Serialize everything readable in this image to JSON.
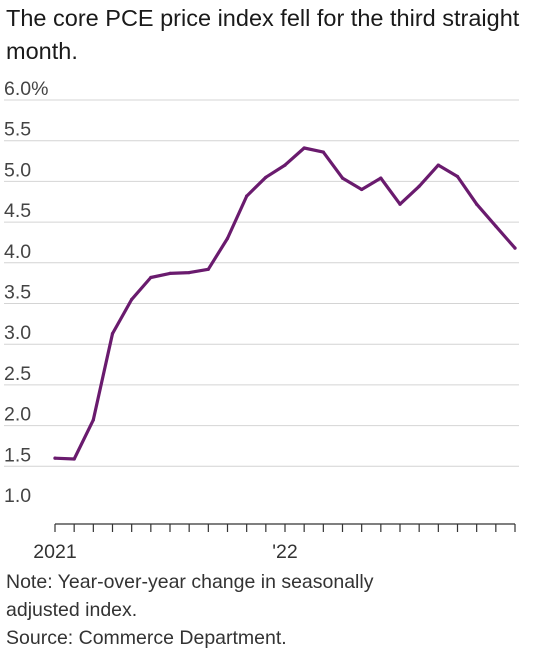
{
  "title": "The core PCE price index fell for the third straight month.",
  "notes": {
    "note": "Note: Year-over-year change in seasonally adjusted index.",
    "note_line1": "Note: Year-over-year change in seasonally",
    "note_line2": "adjusted index.",
    "source": "Source: Commerce Department."
  },
  "colors": {
    "line": "#6a1b6e",
    "grid": "#d4d4d4",
    "axis": "#333333"
  },
  "chart_data": {
    "type": "line",
    "title": "The core PCE price index fell for the third straight month.",
    "xlabel": "",
    "ylabel": "",
    "ylim": [
      1.0,
      6.0
    ],
    "y_ticks": [
      1.0,
      1.5,
      2.0,
      2.5,
      3.0,
      3.5,
      4.0,
      4.5,
      5.0,
      5.5,
      6.0
    ],
    "y_tick_labels": [
      "1.0",
      "1.5",
      "2.0",
      "2.5",
      "3.0",
      "3.5",
      "4.0",
      "4.5",
      "5.0",
      "5.5",
      "6.0%"
    ],
    "x_tick_labels": [
      {
        "index": 0,
        "label": "2021"
      },
      {
        "index": 12,
        "label": "'22"
      }
    ],
    "grid": true,
    "legend": "none",
    "x": [
      "2021-01",
      "2021-02",
      "2021-03",
      "2021-04",
      "2021-05",
      "2021-06",
      "2021-07",
      "2021-08",
      "2021-09",
      "2021-10",
      "2021-11",
      "2021-12",
      "2022-01",
      "2022-02",
      "2022-03",
      "2022-04",
      "2022-05",
      "2022-06",
      "2022-07",
      "2022-08",
      "2022-09",
      "2022-10",
      "2022-11",
      "2022-12",
      "2023-01"
    ],
    "series": [
      {
        "values": [
          1.6,
          1.59,
          2.07,
          3.13,
          3.55,
          3.82,
          3.87,
          3.88,
          3.92,
          4.3,
          4.82,
          5.05,
          5.2,
          5.41,
          5.36,
          5.04,
          4.9,
          5.04,
          4.72,
          4.94,
          5.2,
          5.06,
          4.72,
          4.45,
          4.18
        ]
      }
    ]
  }
}
